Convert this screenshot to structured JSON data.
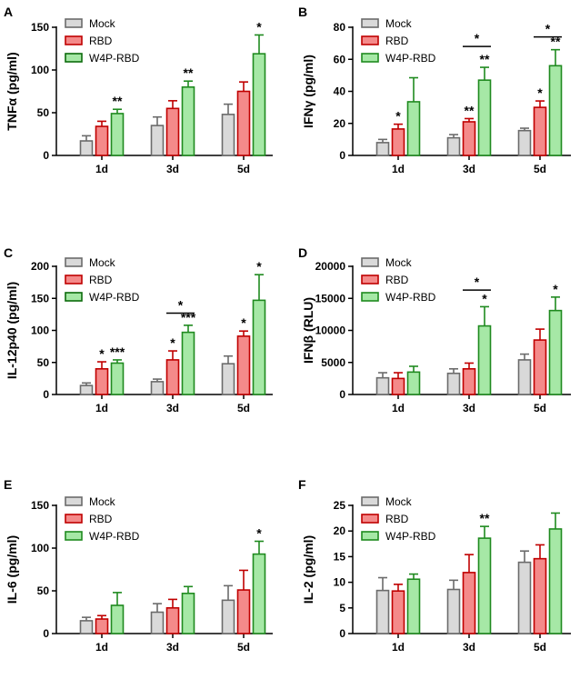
{
  "colors": {
    "mock_fill": "#d9d9d9",
    "mock_edge": "#6b6b6b",
    "rbd_fill": "#f48a8a",
    "rbd_edge": "#c00000",
    "w4p_fill": "#a6e8a6",
    "w4p_edge": "#1f8a1f",
    "axis": "#000000"
  },
  "chart_data": [
    {
      "type": "bar",
      "panel": "A",
      "ylabel": "TNFα (pg/ml)",
      "categories": [
        "1d",
        "3d",
        "5d"
      ],
      "ylim": [
        0,
        150
      ],
      "yticks": [
        0,
        50,
        100,
        150
      ],
      "legend": {
        "placement": "top-left",
        "entries": [
          "Mock",
          "RBD",
          "W4P-RBD"
        ],
        "edge": "dark"
      },
      "series": [
        {
          "name": "Mock",
          "key": "mock",
          "values": [
            17,
            35,
            48
          ],
          "errors": [
            6,
            10,
            12
          ]
        },
        {
          "name": "RBD",
          "key": "rbd",
          "values": [
            34,
            55,
            75
          ],
          "errors": [
            6,
            9,
            11
          ]
        },
        {
          "name": "W4P-RBD",
          "key": "w4p",
          "values": [
            49,
            80,
            119
          ],
          "errors": [
            5,
            7,
            22
          ]
        }
      ],
      "annotations": [
        {
          "text": "**",
          "category": 0,
          "series": 2
        },
        {
          "text": "**",
          "category": 1,
          "series": 2
        },
        {
          "text": "*",
          "category": 2,
          "series": 2
        }
      ],
      "brackets": []
    },
    {
      "type": "bar",
      "panel": "B",
      "ylabel": "IFNγ (pg/ml)",
      "categories": [
        "1d",
        "3d",
        "5d"
      ],
      "ylim": [
        0,
        80
      ],
      "yticks": [
        0,
        20,
        40,
        60,
        80
      ],
      "legend": {
        "placement": "top-left",
        "entries": [
          "Mock",
          "RBD",
          "W4P-RBD"
        ],
        "edge": "normal"
      },
      "series": [
        {
          "name": "Mock",
          "key": "mock",
          "values": [
            8,
            11,
            15.5
          ],
          "errors": [
            2,
            2,
            1.5
          ]
        },
        {
          "name": "RBD",
          "key": "rbd",
          "values": [
            16.5,
            21,
            30
          ],
          "errors": [
            3,
            2,
            4
          ]
        },
        {
          "name": "W4P-RBD",
          "key": "w4p",
          "values": [
            33.5,
            47,
            56
          ],
          "errors": [
            15,
            8,
            10
          ]
        }
      ],
      "annotations": [
        {
          "text": "*",
          "category": 0,
          "series": 1
        },
        {
          "text": "**",
          "category": 1,
          "series": 1
        },
        {
          "text": "**",
          "category": 1,
          "series": 2
        },
        {
          "text": "*",
          "category": 2,
          "series": 1
        },
        {
          "text": "**",
          "category": 2,
          "series": 2
        }
      ],
      "brackets": [
        {
          "text": "*",
          "category": 1,
          "from": 1,
          "to": 2,
          "y": 68
        },
        {
          "text": "*",
          "category": 2,
          "from": 1,
          "to": 2,
          "y": 74
        }
      ]
    },
    {
      "type": "bar",
      "panel": "C",
      "ylabel": "IL-12p40 (pg/ml)",
      "categories": [
        "1d",
        "3d",
        "5d"
      ],
      "ylim": [
        0,
        200
      ],
      "yticks": [
        0,
        50,
        100,
        150,
        200
      ],
      "legend": {
        "placement": "top-left",
        "entries": [
          "Mock",
          "RBD",
          "W4P-RBD"
        ],
        "edge": "dark"
      },
      "series": [
        {
          "name": "Mock",
          "key": "mock",
          "values": [
            14,
            20,
            48
          ],
          "errors": [
            4,
            4,
            12
          ]
        },
        {
          "name": "RBD",
          "key": "rbd",
          "values": [
            40,
            54,
            91
          ],
          "errors": [
            11,
            14,
            8
          ]
        },
        {
          "name": "W4P-RBD",
          "key": "w4p",
          "values": [
            49,
            97,
            147
          ],
          "errors": [
            5,
            11,
            40
          ]
        }
      ],
      "annotations": [
        {
          "text": "*",
          "category": 0,
          "series": 1
        },
        {
          "text": "***",
          "category": 0,
          "series": 2
        },
        {
          "text": "*",
          "category": 1,
          "series": 1
        },
        {
          "text": "***",
          "category": 1,
          "series": 2
        },
        {
          "text": "*",
          "category": 2,
          "series": 1
        },
        {
          "text": "*",
          "category": 2,
          "series": 2
        }
      ],
      "brackets": [
        {
          "text": "*",
          "category": 1,
          "from": 1,
          "to": 2,
          "y": 127
        }
      ]
    },
    {
      "type": "bar",
      "panel": "D",
      "ylabel": "IFNβ (RLU)",
      "categories": [
        "1d",
        "3d",
        "5d"
      ],
      "ylim": [
        0,
        20000
      ],
      "yticks": [
        0,
        5000,
        10000,
        15000,
        20000
      ],
      "legend": {
        "placement": "top-left",
        "entries": [
          "Mock",
          "RBD",
          "W4P-RBD"
        ],
        "edge": "normal"
      },
      "series": [
        {
          "name": "Mock",
          "key": "mock",
          "values": [
            2600,
            3300,
            5400
          ],
          "errors": [
            800,
            700,
            900
          ]
        },
        {
          "name": "RBD",
          "key": "rbd",
          "values": [
            2500,
            4000,
            8500
          ],
          "errors": [
            900,
            900,
            1700
          ]
        },
        {
          "name": "W4P-RBD",
          "key": "w4p",
          "values": [
            3500,
            10700,
            13100
          ],
          "errors": [
            900,
            3000,
            2100
          ]
        }
      ],
      "annotations": [
        {
          "text": "*",
          "category": 1,
          "series": 2
        },
        {
          "text": "*",
          "category": 2,
          "series": 2
        }
      ],
      "brackets": [
        {
          "text": "*",
          "category": 1,
          "from": 1,
          "to": 2,
          "y": 16300
        }
      ]
    },
    {
      "type": "bar",
      "panel": "E",
      "ylabel": "IL-6 (pg/ml)",
      "categories": [
        "1d",
        "3d",
        "5d"
      ],
      "ylim": [
        0,
        150
      ],
      "yticks": [
        0,
        50,
        100,
        150
      ],
      "legend": {
        "placement": "top-left",
        "entries": [
          "Mock",
          "RBD",
          "W4P-RBD"
        ],
        "edge": "normal"
      },
      "series": [
        {
          "name": "Mock",
          "key": "mock",
          "values": [
            15,
            25,
            39
          ],
          "errors": [
            4,
            10,
            17
          ]
        },
        {
          "name": "RBD",
          "key": "rbd",
          "values": [
            17,
            30,
            51
          ],
          "errors": [
            4,
            10,
            23
          ]
        },
        {
          "name": "W4P-RBD",
          "key": "w4p",
          "values": [
            33,
            47,
            93
          ],
          "errors": [
            15,
            8,
            15
          ]
        }
      ],
      "annotations": [
        {
          "text": "*",
          "category": 2,
          "series": 2
        }
      ],
      "brackets": []
    },
    {
      "type": "bar",
      "panel": "F",
      "ylabel": "IL-2 (pg/ml)",
      "categories": [
        "1d",
        "3d",
        "5d"
      ],
      "ylim": [
        0,
        25
      ],
      "yticks": [
        0,
        5,
        10,
        15,
        20,
        25
      ],
      "legend": {
        "placement": "top-left",
        "entries": [
          "Mock",
          "RBD",
          "W4P-RBD"
        ],
        "edge": "normal"
      },
      "series": [
        {
          "name": "Mock",
          "key": "mock",
          "values": [
            8.4,
            8.6,
            13.9
          ],
          "errors": [
            2.5,
            1.8,
            2.2
          ]
        },
        {
          "name": "RBD",
          "key": "rbd",
          "values": [
            8.3,
            11.9,
            14.6
          ],
          "errors": [
            1.3,
            3.5,
            2.7
          ]
        },
        {
          "name": "W4P-RBD",
          "key": "w4p",
          "values": [
            10.6,
            18.6,
            20.4
          ],
          "errors": [
            1.0,
            2.3,
            3.1
          ]
        }
      ],
      "annotations": [
        {
          "text": "**",
          "category": 1,
          "series": 2
        }
      ],
      "brackets": []
    }
  ]
}
